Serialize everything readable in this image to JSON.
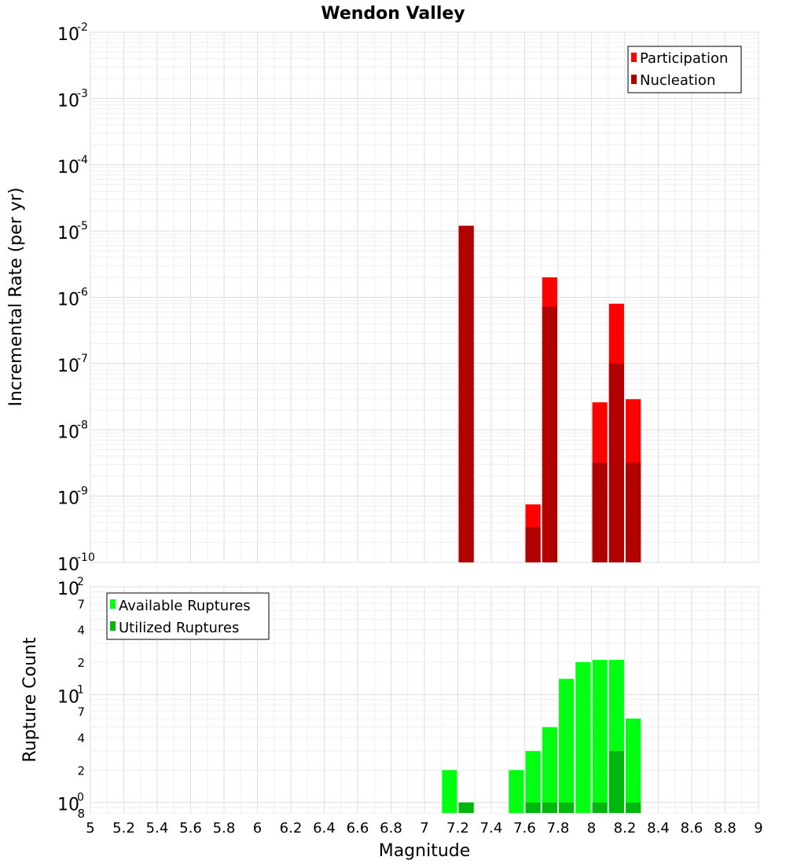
{
  "title": "Wendon Valley",
  "xlabel": "Magnitude",
  "x_ticks": [
    "5",
    "5.2",
    "5.4",
    "5.6",
    "5.8",
    "6",
    "6.2",
    "6.4",
    "6.6",
    "6.8",
    "7",
    "7.2",
    "7.4",
    "7.6",
    "7.8",
    "8",
    "8.2",
    "8.4",
    "8.6",
    "8.8",
    "9"
  ],
  "colors": {
    "participation": "#ff0000",
    "nucleation": "#b00000",
    "available": "#00ff11",
    "utilized": "#00b80d"
  },
  "chart_data": [
    {
      "type": "bar",
      "title": "Wendon Valley",
      "xlabel": "",
      "ylabel": "Incremental Rate (per yr)",
      "xlim": [
        5,
        9
      ],
      "ylim": [
        1e-10,
        0.01
      ],
      "yscale": "log",
      "y_ticks": [
        {
          "base": "10",
          "exp": "-2"
        },
        {
          "base": "10",
          "exp": "-3"
        },
        {
          "base": "10",
          "exp": "-4"
        },
        {
          "base": "10",
          "exp": "-5"
        },
        {
          "base": "10",
          "exp": "-6"
        },
        {
          "base": "10",
          "exp": "-7"
        },
        {
          "base": "10",
          "exp": "-8"
        },
        {
          "base": "10",
          "exp": "-9"
        },
        {
          "base": "10",
          "exp": "-10"
        }
      ],
      "legend": {
        "position": "top-right",
        "entries": [
          "Participation",
          "Nucleation"
        ]
      },
      "grid": true,
      "bar_width": 0.09,
      "series": [
        {
          "name": "Participation",
          "x": [
            7.25,
            7.65,
            7.75,
            8.05,
            8.15,
            8.25
          ],
          "values": [
            1.2e-05,
            7.5e-10,
            2e-06,
            2.6e-08,
            8e-07,
            2.9e-08
          ]
        },
        {
          "name": "Nucleation",
          "x": [
            7.25,
            7.65,
            7.75,
            8.05,
            8.15,
            8.25
          ],
          "values": [
            1.2e-05,
            3.4e-10,
            7.2e-07,
            3.2e-09,
            1e-07,
            3.2e-09
          ]
        }
      ]
    },
    {
      "type": "bar",
      "title": "",
      "xlabel": "Magnitude",
      "ylabel": "Rupture Count",
      "xlim": [
        5,
        9
      ],
      "ylim": [
        0.8,
        100
      ],
      "yscale": "log",
      "y_ticks": [
        {
          "base": "10",
          "exp": "2",
          "value": 100
        },
        {
          "base": "10",
          "exp": "1",
          "value": 10
        },
        {
          "base": "10",
          "exp": "0",
          "value": 1
        }
      ],
      "y_minor_ticks": [
        "7",
        "4",
        "2",
        "7",
        "4",
        "2",
        "8"
      ],
      "legend": {
        "position": "top-left",
        "entries": [
          "Available Ruptures",
          "Utilized Ruptures"
        ]
      },
      "grid": true,
      "bar_width": 0.09,
      "series": [
        {
          "name": "Available Ruptures",
          "x": [
            7.15,
            7.25,
            7.55,
            7.65,
            7.75,
            7.85,
            7.95,
            8.05,
            8.15,
            8.25
          ],
          "values": [
            2,
            1,
            2,
            3,
            5,
            14,
            20,
            21,
            21,
            6
          ]
        },
        {
          "name": "Utilized Ruptures",
          "x": [
            7.25,
            7.65,
            7.75,
            7.85,
            8.05,
            8.15,
            8.25
          ],
          "values": [
            1,
            1,
            1,
            1,
            1,
            3,
            1
          ]
        }
      ]
    }
  ]
}
